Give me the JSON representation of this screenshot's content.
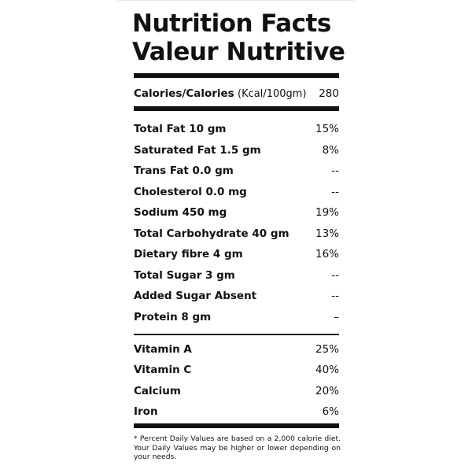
{
  "title_en": "Nutrition Facts",
  "title_fr": "Valeur Nutritive",
  "calories": {
    "label": "Calories/Calories",
    "unit": "(Kcal/100gm)",
    "value": "280"
  },
  "nutrients": [
    {
      "label": "Total Fat 10 gm",
      "value": "15%"
    },
    {
      "label": "Saturated Fat 1.5 gm",
      "value": "8%"
    },
    {
      "label": "Trans Fat 0.0 gm",
      "value": "--"
    },
    {
      "label": "Cholesterol 0.0 mg",
      "value": "--"
    },
    {
      "label": "Sodium 450 mg",
      "value": "19%"
    },
    {
      "label": "Total Carbohydrate 40 gm",
      "value": "13%"
    },
    {
      "label": "Dietary fibre 4 gm",
      "value": "16%"
    },
    {
      "label": "Total Sugar 3 gm",
      "value": "--"
    },
    {
      "label": "Added Sugar Absent",
      "value": "--"
    },
    {
      "label": "Protein 8 gm",
      "value": "–"
    }
  ],
  "vitamins": [
    {
      "label": "Vitamin A",
      "value": "25%"
    },
    {
      "label": "Vitamin C",
      "value": "40%"
    },
    {
      "label": "Calcium",
      "value": "20%"
    },
    {
      "label": "Iron",
      "value": "6%"
    }
  ],
  "footnote": "* Percent Daily Values are based on a 2,000 calorie diet. Your Daily Values may be higher or lower depending on your needs."
}
